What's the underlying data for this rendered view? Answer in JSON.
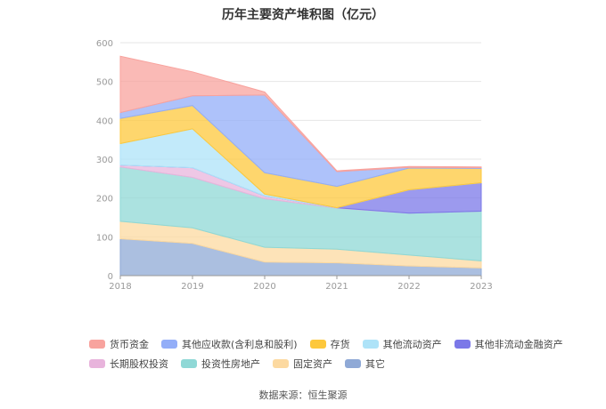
{
  "title": "历年主要资产堆积图（亿元）",
  "source_text": "数据来源：恒生聚源",
  "chart_data": {
    "type": "area",
    "stacked": true,
    "title": "历年主要资产堆积图（亿元）",
    "xlabel": "",
    "ylabel": "",
    "x": [
      "2018",
      "2019",
      "2020",
      "2021",
      "2022",
      "2023"
    ],
    "y_ticks": [
      "0",
      "100",
      "200",
      "300",
      "400",
      "500",
      "600"
    ],
    "ylim": [
      0,
      600
    ],
    "grid": true,
    "legend_position": "bottom",
    "series": [
      {
        "name": "其它",
        "color": "#8fa9d6",
        "values": [
          95,
          83,
          35,
          33,
          25,
          20
        ]
      },
      {
        "name": "固定资产",
        "color": "#fcd9a0",
        "values": [
          45,
          40,
          38,
          35,
          28,
          18
        ]
      },
      {
        "name": "投资性房地产",
        "color": "#8fd8d6",
        "values": [
          140,
          130,
          125,
          106,
          108,
          128
        ]
      },
      {
        "name": "长期股权投资",
        "color": "#e8b4dc",
        "values": [
          5,
          25,
          7,
          1,
          0,
          0
        ]
      },
      {
        "name": "其他非流动金融资产",
        "color": "#7b78e8",
        "values": [
          0,
          0,
          0,
          0,
          60,
          73
        ]
      },
      {
        "name": "其他流动资产",
        "color": "#aee3f8",
        "values": [
          55,
          100,
          5,
          0,
          0,
          0
        ]
      },
      {
        "name": "存货",
        "color": "#fdc83c",
        "values": [
          65,
          60,
          55,
          55,
          56,
          37
        ]
      },
      {
        "name": "其他应收款(含利息和股利)",
        "color": "#93aef8",
        "values": [
          15,
          25,
          200,
          38,
          2,
          2
        ]
      },
      {
        "name": "货币资金",
        "color": "#f8a39e",
        "values": [
          145,
          62,
          8,
          2,
          2,
          2
        ]
      }
    ]
  },
  "legend": {
    "row1": [
      "货币资金",
      "其他应收款(含利息和股利)",
      "存货",
      "其他流动资产",
      "其他非流动金融资产"
    ],
    "row2": [
      "长期股权投资",
      "投资性房地产",
      "固定资产",
      "其它"
    ]
  },
  "colors": {
    "货币资金": "#f8a39e",
    "其他应收款(含利息和股利)": "#93aef8",
    "存货": "#fdc83c",
    "其他流动资产": "#aee3f8",
    "其他非流动金融资产": "#7b78e8",
    "长期股权投资": "#e8b4dc",
    "投资性房地产": "#8fd8d6",
    "固定资产": "#fcd9a0",
    "其它": "#8fa9d6"
  }
}
